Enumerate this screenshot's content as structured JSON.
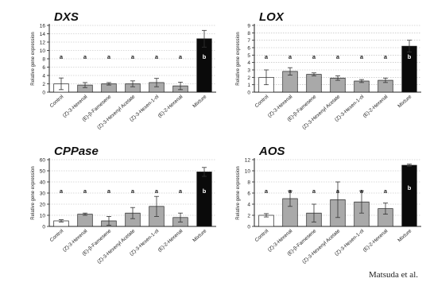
{
  "chart_data": [
    {
      "type": "bar",
      "title": "DXS",
      "ylabel": "Relative gene expression",
      "ylim": [
        0,
        16
      ],
      "yticks": [
        0,
        2,
        4,
        6,
        8,
        10,
        12,
        14,
        16
      ],
      "categories": [
        "Control",
        "(Z)-3-Hexenal",
        "(E)-β-Farnesene",
        "(Z)-3-Hexenyl Acetate",
        "(Z)-3-Hexen-1-ol",
        "(E)-2-Hexenal",
        "Mixture"
      ],
      "values": [
        2.0,
        1.7,
        2.0,
        2.0,
        2.3,
        1.5,
        12.8
      ],
      "errors": [
        1.4,
        0.6,
        0.3,
        0.7,
        1.0,
        0.9,
        2.0
      ],
      "letters": [
        "a",
        "a",
        "a",
        "a",
        "a",
        "a",
        "b"
      ],
      "grid": true
    },
    {
      "type": "bar",
      "title": "LOX",
      "ylabel": "Relative gene expression",
      "ylim": [
        0,
        9
      ],
      "yticks": [
        0,
        1,
        2,
        3,
        4,
        5,
        6,
        7,
        8,
        9
      ],
      "categories": [
        "Control",
        "(Z)-3-Hexenal",
        "(E)-β-Farnesene",
        "(Z)-3-Hexenyl Acetate",
        "(Z)-3-Hexen-1-ol",
        "(E)-2-Hexenal",
        "Mixture"
      ],
      "values": [
        2.0,
        2.8,
        2.4,
        1.9,
        1.5,
        1.6,
        6.2
      ],
      "errors": [
        1.0,
        0.5,
        0.2,
        0.3,
        0.2,
        0.3,
        0.8
      ],
      "letters": [
        "a",
        "a",
        "a",
        "a",
        "a",
        "a",
        "b"
      ],
      "grid": true
    },
    {
      "type": "bar",
      "title": "CPPase",
      "ylabel": "Relative gene expression",
      "ylim": [
        0,
        60
      ],
      "yticks": [
        0,
        10,
        20,
        30,
        40,
        50,
        60
      ],
      "categories": [
        "Control",
        "(Z)-3-Hexenal",
        "(E)-β-Farnesene",
        "(Z)-3-Hexenyl Acetate",
        "(Z)-3-Hexen-1-ol",
        "(E)-2-Hexenal",
        "Mixture"
      ],
      "values": [
        5,
        11,
        5,
        12,
        18,
        8,
        49
      ],
      "errors": [
        1,
        1,
        4,
        5,
        9,
        4,
        4
      ],
      "letters": [
        "a",
        "a",
        "a",
        "a",
        "a",
        "a",
        "b"
      ],
      "grid": true
    },
    {
      "type": "bar",
      "title": "AOS",
      "ylabel": "Relative gene expression",
      "ylim": [
        0,
        12
      ],
      "yticks": [
        0,
        2,
        4,
        6,
        8,
        10,
        12
      ],
      "categories": [
        "Control",
        "(Z)-3-Hexenal",
        "(E)-β-Farnesene",
        "(Z)-3-Hexenyl Acetate",
        "(Z)-3-Hexen-1-ol",
        "(E)-2-Hexenal",
        "Mixture"
      ],
      "values": [
        2.0,
        5.0,
        2.4,
        4.8,
        4.4,
        3.2,
        11.0
      ],
      "errors": [
        0.3,
        1.4,
        1.6,
        3.2,
        2.0,
        1.0,
        0.2
      ],
      "letters": [
        "a",
        "a",
        "a",
        "a",
        "a",
        "a",
        "b"
      ],
      "grid": true
    }
  ],
  "colors": {
    "control": "#ffffff",
    "treatment": "#a9a9a9",
    "mixture": "#0a0a0a",
    "axis": "#222222",
    "grid": "#b5b5b5"
  },
  "credit": "Matsuda et al."
}
